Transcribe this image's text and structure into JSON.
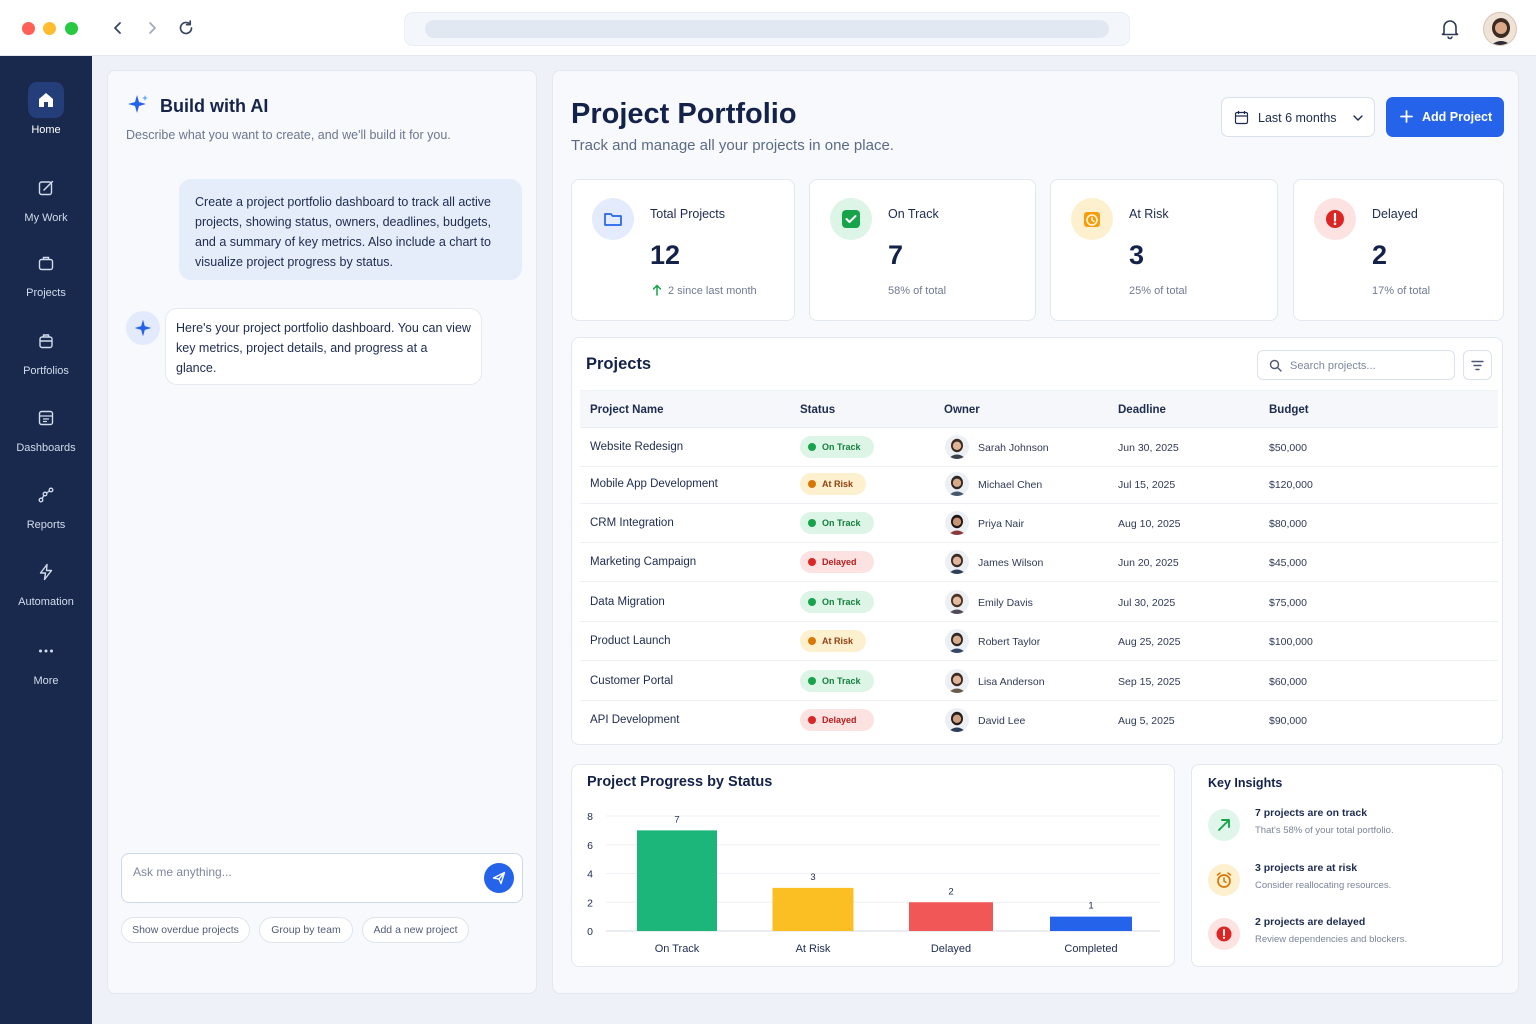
{
  "ai_panel": {
    "title": "Build with AI",
    "subtitle": "Describe what you want to create, and we'll build it for you.",
    "user_message": "Create a project portfolio dashboard to track all active projects, showing status, owners, deadlines, budgets, and a summary of key metrics. Also include a chart to visualize project progress by status.",
    "ai_message": "Here's your project portfolio dashboard. You can view key metrics, project details, and progress at a glance.",
    "input_placeholder": "Ask me anything...",
    "suggestions": [
      "Show overdue projects",
      "Group by team",
      "Add a new project"
    ]
  },
  "sidebar": {
    "items": [
      {
        "label": "Home",
        "icon": "home-icon",
        "active": true
      },
      {
        "label": "My Work",
        "icon": "edit-icon"
      },
      {
        "label": "Projects",
        "icon": "briefcase-icon"
      },
      {
        "label": "Portfolios",
        "icon": "portfolio-icon"
      },
      {
        "label": "Dashboards",
        "icon": "dashboard-icon"
      },
      {
        "label": "Reports",
        "icon": "reports-icon"
      },
      {
        "label": "Automation",
        "icon": "lightning-icon"
      },
      {
        "label": "More",
        "icon": "more-icon"
      }
    ]
  },
  "header": {
    "title": "Project Portfolio",
    "subtitle": "Track and manage all your projects in one place.",
    "date_range": "Last 6 months",
    "add_button": "Add Project"
  },
  "stats": [
    {
      "label": "Total Projects",
      "value": "12",
      "note": "2 since last month",
      "color": "#2563eb"
    },
    {
      "label": "On Track",
      "value": "7",
      "note": "58% of total",
      "color": "#16a34a"
    },
    {
      "label": "At Risk",
      "value": "3",
      "note": "25% of total",
      "color": "#f59e0b"
    },
    {
      "label": "Delayed",
      "value": "2",
      "note": "17% of total",
      "color": "#dc2626"
    }
  ],
  "projects_table": {
    "title": "Projects",
    "search_placeholder": "Search projects...",
    "columns": [
      "Project Name",
      "Status",
      "Owner",
      "Deadline",
      "Budget"
    ],
    "rows": [
      {
        "name": "Website Redesign",
        "status": "On Track",
        "owner": "Sarah Johnson",
        "deadline": "Jun 30, 2025",
        "budget": "$50,000"
      },
      {
        "name": "Mobile App Development",
        "status": "At Risk",
        "owner": "Michael Chen",
        "deadline": "Jul 15, 2025",
        "budget": "$120,000"
      },
      {
        "name": "CRM Integration",
        "status": "On Track",
        "owner": "Priya Nair",
        "deadline": "Aug 10, 2025",
        "budget": "$80,000"
      },
      {
        "name": "Marketing Campaign",
        "status": "Delayed",
        "owner": "James Wilson",
        "deadline": "Jun 20, 2025",
        "budget": "$45,000"
      },
      {
        "name": "Data Migration",
        "status": "On Track",
        "owner": "Emily Davis",
        "deadline": "Jul 30, 2025",
        "budget": "$75,000"
      },
      {
        "name": "Product Launch",
        "status": "At Risk",
        "owner": "Robert Taylor",
        "deadline": "Aug 25, 2025",
        "budget": "$100,000"
      },
      {
        "name": "Customer Portal",
        "status": "On Track",
        "owner": "Lisa Anderson",
        "deadline": "Sep 15, 2025",
        "budget": "$60,000"
      },
      {
        "name": "API Development",
        "status": "Delayed",
        "owner": "David Lee",
        "deadline": "Aug 5, 2025",
        "budget": "$90,000"
      }
    ]
  },
  "status_colors": {
    "On Track": {
      "bg": "#dcf5e6",
      "fg": "#15803d",
      "dot": "#16a34a"
    },
    "At Risk": {
      "bg": "#fdf0cf",
      "fg": "#92400e",
      "dot": "#d97706"
    },
    "Delayed": {
      "bg": "#fde2e2",
      "fg": "#b91c1c",
      "dot": "#dc2626"
    }
  },
  "chart_data": {
    "type": "bar",
    "title": "Project Progress by Status",
    "categories": [
      "On Track",
      "At Risk",
      "Delayed",
      "Completed"
    ],
    "values": [
      7,
      3,
      2,
      1
    ],
    "colors": [
      "#1cb57a",
      "#fbbf24",
      "#f25757",
      "#2563eb"
    ],
    "ylim": [
      0,
      8
    ],
    "yticks": [
      0,
      2,
      4,
      6,
      8
    ],
    "grid": true,
    "xlabel": "",
    "ylabel": ""
  },
  "insights": {
    "title": "Key Insights",
    "items": [
      {
        "title": "7 projects are on track",
        "subtitle": "That's 58% of your total portfolio.",
        "icon": "trend-up-icon"
      },
      {
        "title": "3 projects are at risk",
        "subtitle": "Consider reallocating resources.",
        "icon": "alarm-clock-icon"
      },
      {
        "title": "2 projects are delayed",
        "subtitle": "Review dependencies and blockers.",
        "icon": "alert-icon"
      }
    ]
  }
}
